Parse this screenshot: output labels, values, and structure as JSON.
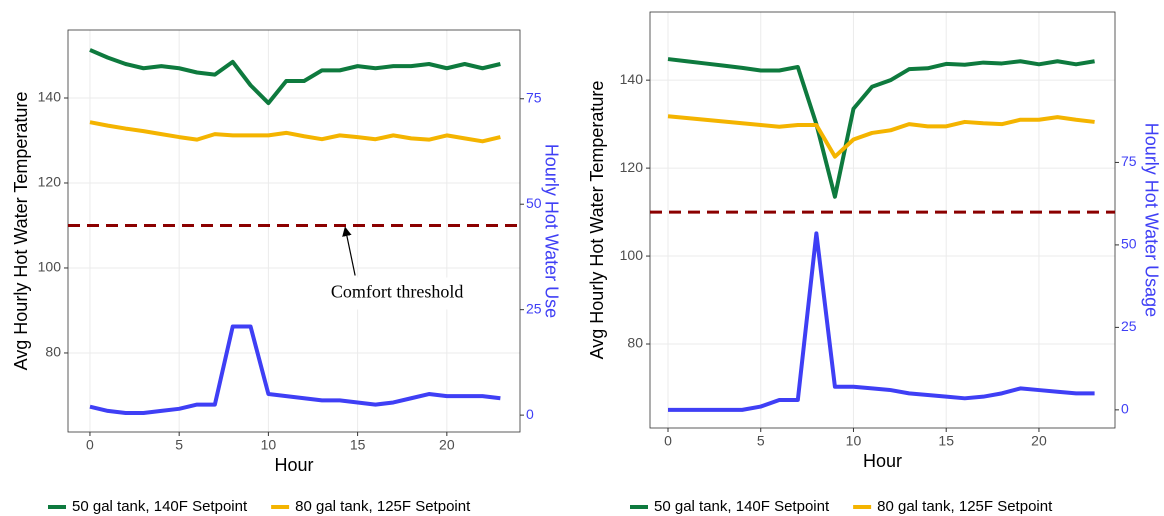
{
  "chart_data": [
    {
      "type": "line",
      "xlabel": "Hour",
      "ylabel": "Avg Hourly Hot Water Temperature",
      "y2label": "Hourly Hot Water Use",
      "x": [
        0,
        1,
        2,
        3,
        4,
        5,
        6,
        7,
        8,
        9,
        10,
        11,
        12,
        13,
        14,
        15,
        16,
        17,
        18,
        19,
        20,
        21,
        22,
        23
      ],
      "series": [
        {
          "name": "50 gal tank, 140F Setpoint",
          "color": "#0e7a3e",
          "values": [
            151.3,
            149.5,
            148,
            147,
            147.5,
            147,
            146,
            145.5,
            148.5,
            143,
            138.8,
            144,
            144,
            146.5,
            146.5,
            147.5,
            147,
            147.5,
            147.5,
            148,
            147,
            148,
            147,
            148
          ]
        },
        {
          "name": "80 gal tank, 125F Setpoint",
          "color": "#f4b400",
          "values": [
            134.3,
            133.5,
            132.8,
            132.2,
            131.5,
            130.8,
            130.2,
            131.5,
            131.2,
            131.2,
            131.2,
            131.8,
            131,
            130.3,
            131.2,
            130.8,
            130.3,
            131.2,
            130.5,
            130.2,
            131.2,
            130.5,
            129.8,
            130.8
          ]
        },
        {
          "color": "#3f3ff5",
          "axis": "y2",
          "values": [
            2,
            1,
            0.5,
            0.5,
            1,
            1.5,
            2.5,
            2.5,
            21,
            21,
            5,
            4.5,
            4,
            3.5,
            3.5,
            3,
            2.5,
            3,
            4,
            5,
            4.5,
            4.5,
            4.5,
            4
          ]
        }
      ],
      "threshold": {
        "value": 110,
        "color": "#8b0000"
      },
      "annotation": {
        "text": "Comfort threshold",
        "x": 14.3,
        "y": 110
      },
      "xlim": [
        -1.23,
        24.1
      ],
      "xticks": [
        0,
        5,
        10,
        15,
        20
      ],
      "ylim": [
        61.4,
        156
      ],
      "yticks": [
        80,
        100,
        120,
        140
      ],
      "y2lim": [
        -4,
        91.3
      ],
      "y2ticks": [
        0,
        25,
        50,
        75
      ],
      "y2color": "#3f3ff5",
      "grid": true
    },
    {
      "type": "line",
      "xlabel": "Hour",
      "ylabel": "Avg Hourly Hot Water Temperature",
      "y2label": "Hourly Hot Water Usage",
      "x": [
        0,
        1,
        2,
        3,
        4,
        5,
        6,
        7,
        8,
        9,
        10,
        11,
        12,
        13,
        14,
        15,
        16,
        17,
        18,
        19,
        20,
        21,
        22,
        23
      ],
      "series": [
        {
          "name": "50 gal tank, 140F Setpoint",
          "color": "#0e7a3e",
          "values": [
            144.8,
            144.3,
            143.8,
            143.3,
            142.8,
            142.2,
            142.2,
            143,
            130,
            113.5,
            133.5,
            138.5,
            140,
            142.5,
            142.7,
            143.7,
            143.5,
            144,
            143.8,
            144.3,
            143.6,
            144.3,
            143.6,
            144.3
          ]
        },
        {
          "name": "80 gal tank, 125F Setpoint",
          "color": "#f4b400",
          "values": [
            131.8,
            131.4,
            131,
            130.6,
            130.2,
            129.8,
            129.4,
            129.8,
            129.8,
            122.6,
            126.5,
            128,
            128.6,
            130,
            129.5,
            129.5,
            130.5,
            130.2,
            130,
            131,
            131,
            131.6,
            131,
            130.5
          ]
        },
        {
          "color": "#3f3ff5",
          "axis": "y2",
          "values": [
            0,
            0,
            0,
            0,
            0,
            1,
            3,
            3,
            53.5,
            7,
            7,
            6.5,
            6,
            5,
            4.5,
            4,
            3.5,
            4,
            5,
            6.5,
            6,
            5.5,
            5,
            5
          ]
        }
      ],
      "threshold": {
        "value": 110,
        "color": "#8b0000"
      },
      "xlim": [
        -0.97,
        24.1
      ],
      "xticks": [
        0,
        5,
        10,
        15,
        20
      ],
      "ylim": [
        60.9,
        155.5
      ],
      "yticks": [
        80,
        100,
        120,
        140
      ],
      "y2lim": [
        -5.5,
        120.6
      ],
      "y2ticks": [
        0,
        25,
        50,
        75
      ],
      "y2color": "#3f3ff5",
      "grid": true
    }
  ]
}
